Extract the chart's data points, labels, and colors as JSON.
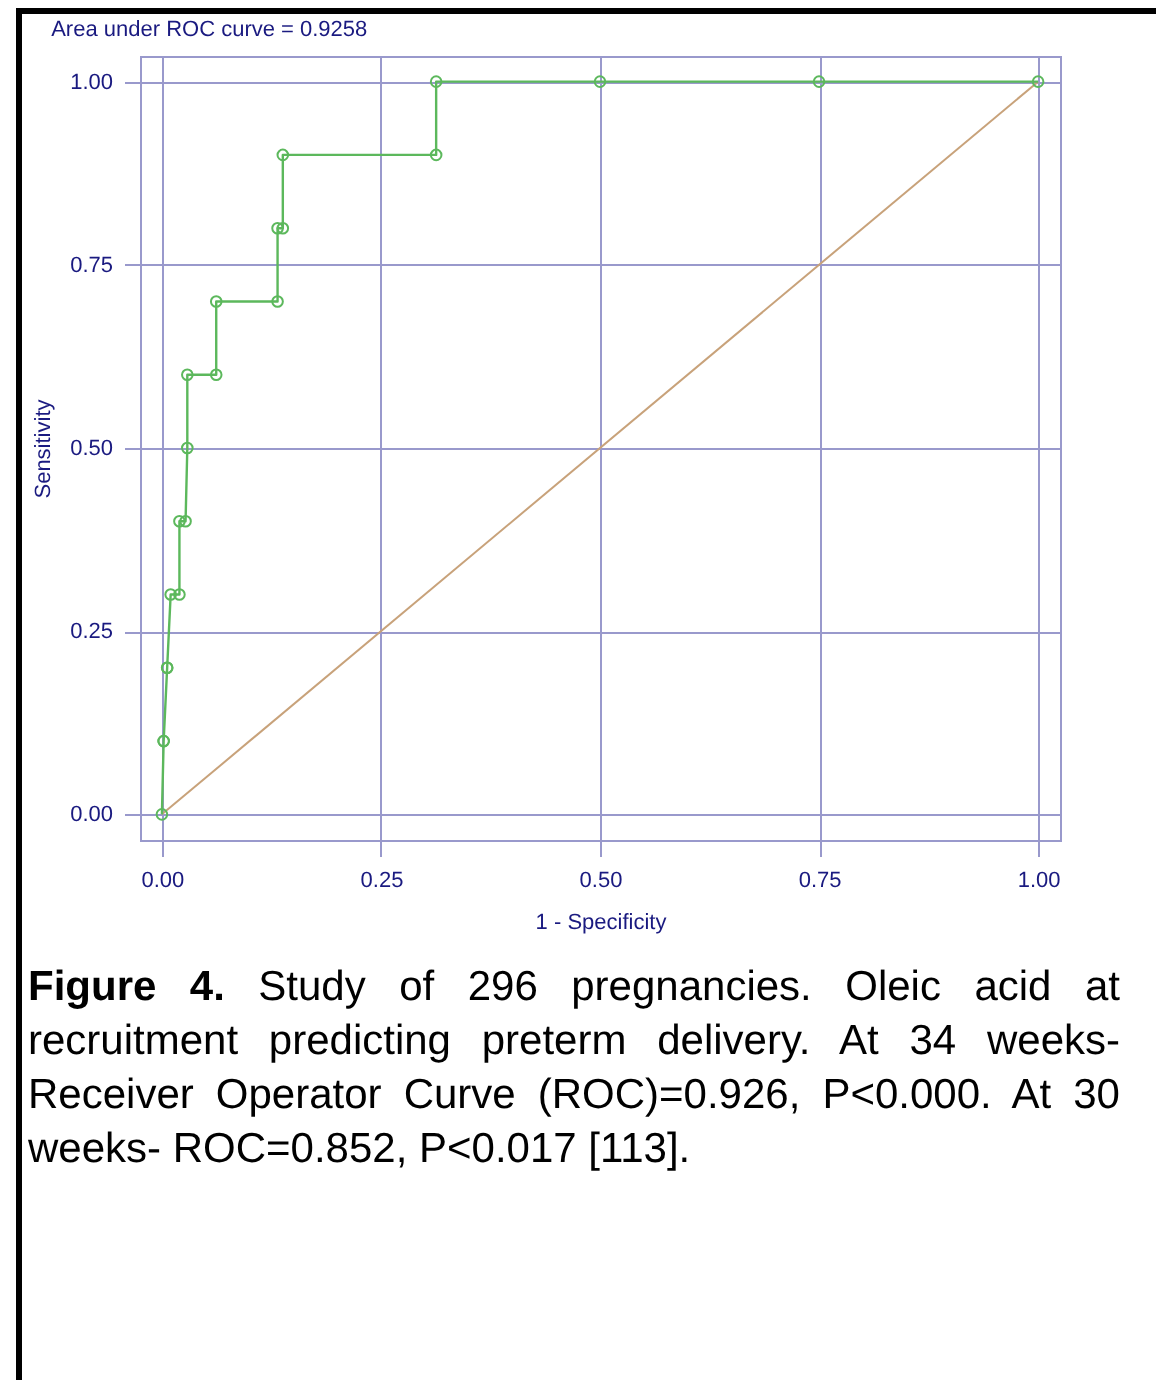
{
  "chart_data": {
    "type": "line",
    "title": "Area under ROC curve = 0.9258",
    "xlabel": "1 - Specificity",
    "ylabel": "Sensitivity",
    "series": [
      {
        "color": "#c8a27a",
        "marker": "none",
        "x": [
          0,
          1
        ],
        "values": [
          0,
          1
        ]
      },
      {
        "color": "#5cb85c",
        "marker": "circle",
        "x": [
          0,
          0.002,
          0.002,
          0.006,
          0.006,
          0.01,
          0.02,
          0.02,
          0.027,
          0.029,
          0.029,
          0.062,
          0.062,
          0.132,
          0.132,
          0.138,
          0.138,
          0.313,
          0.313,
          0.5,
          0.75,
          1
        ],
        "values": [
          0,
          0.1,
          0.1,
          0.2,
          0.2,
          0.3,
          0.3,
          0.4,
          0.4,
          0.5,
          0.6,
          0.6,
          0.7,
          0.7,
          0.8,
          0.8,
          0.9,
          0.9,
          1,
          1,
          1,
          1
        ]
      }
    ],
    "xlim": [
      -0.025,
      1.025
    ],
    "ylim": [
      -0.035,
      1.035
    ],
    "xticks": [
      {
        "value": 0,
        "label": "0.00"
      },
      {
        "value": 0.25,
        "label": "0.25"
      },
      {
        "value": 0.5,
        "label": "0.50"
      },
      {
        "value": 0.75,
        "label": "0.75"
      },
      {
        "value": 1,
        "label": "1.00"
      }
    ],
    "yticks": [
      {
        "value": 0,
        "label": "0.00"
      },
      {
        "value": 0.25,
        "label": "0.25"
      },
      {
        "value": 0.5,
        "label": "0.50"
      },
      {
        "value": 0.75,
        "label": "0.75"
      },
      {
        "value": 1,
        "label": "1.00"
      }
    ],
    "grid": true,
    "annotations": [
      "Figure 4. Study of 296 pregnancies. Oleic acid at recruitment predicting preterm delivery. At 34 weeks- Receiver Operator Curve (ROC)=0.926, P<0.000. At 30 weeks- ROC=0.852, P<0.017 [113]."
    ]
  }
}
